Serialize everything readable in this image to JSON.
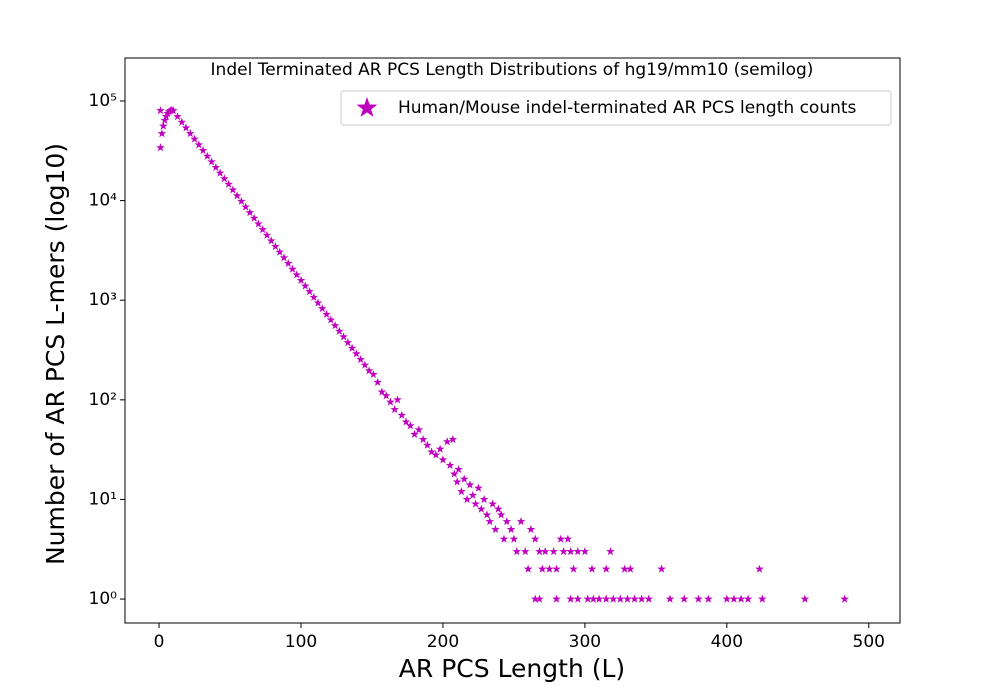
{
  "chart_data": {
    "type": "scatter",
    "title": "Indel Terminated AR PCS Length Distributions of hg19/mm10 (semilog)",
    "x_label": "AR PCS Length (L)",
    "y_label": "Number of AR PCS L-mers (log10)",
    "yscale": "log",
    "legend_loc": "upper right",
    "xlim": [
      -24,
      522
    ],
    "ylim": [
      0.575,
      270000
    ],
    "xticks": [
      0,
      100,
      200,
      300,
      400,
      500
    ],
    "yticks": [
      {
        "value": 1,
        "label": "10⁰"
      },
      {
        "value": 10,
        "label": "10¹"
      },
      {
        "value": 100,
        "label": "10²"
      },
      {
        "value": 1000,
        "label": "10³"
      },
      {
        "value": 10000,
        "label": "10⁴"
      },
      {
        "value": 100000,
        "label": "10⁵"
      }
    ],
    "series": [
      {
        "name": "Human/Mouse indel-terminated AR PCS length counts",
        "color": "#bf00bf",
        "marker": "star",
        "x": [
          1,
          1,
          2,
          3,
          4,
          5,
          6,
          7,
          8,
          9,
          10,
          13,
          16,
          19,
          22,
          25,
          28,
          31,
          34,
          37,
          40,
          43,
          46,
          49,
          52,
          55,
          58,
          61,
          64,
          67,
          70,
          73,
          76,
          79,
          82,
          85,
          88,
          91,
          94,
          97,
          100,
          103,
          106,
          109,
          112,
          115,
          118,
          121,
          124,
          127,
          130,
          133,
          136,
          139,
          142,
          145,
          148,
          151,
          154,
          157,
          160,
          163,
          166,
          168,
          171,
          174,
          177,
          180,
          183,
          186,
          189,
          192,
          195,
          198,
          200,
          203,
          205,
          207,
          208,
          210,
          211,
          213,
          215,
          217,
          219,
          221,
          223,
          225,
          227,
          229,
          231,
          233,
          235,
          237,
          239,
          241,
          243,
          245,
          248,
          250,
          252,
          255,
          258,
          260,
          262,
          265,
          268,
          270,
          272,
          275,
          278,
          280,
          283,
          285,
          288,
          290,
          292,
          295,
          300,
          305,
          315,
          318,
          328,
          332,
          354,
          423,
          265,
          268,
          280,
          290,
          295,
          302,
          306,
          310,
          315,
          320,
          325,
          330,
          335,
          340,
          345,
          360,
          370,
          380,
          387,
          400,
          405,
          410,
          415,
          425,
          455,
          483
        ],
        "values": [
          34000,
          80000,
          47000,
          56000,
          64000,
          70000,
          75000,
          78000,
          80000,
          81000,
          80000,
          69700,
          61200,
          53700,
          47100,
          41400,
          36300,
          31900,
          27900,
          24500,
          21500,
          18900,
          16600,
          14600,
          12800,
          11200,
          9840,
          8630,
          7570,
          6650,
          5830,
          5120,
          4490,
          3940,
          3460,
          3040,
          2670,
          2340,
          2050,
          1800,
          1580,
          1390,
          1220,
          1070,
          938,
          823,
          722,
          634,
          556,
          488,
          429,
          376,
          330,
          290,
          254,
          223,
          196,
          180,
          150,
          120,
          110,
          95,
          80,
          100,
          70,
          60,
          55,
          45,
          50,
          40,
          35,
          30,
          28,
          32,
          25,
          38,
          22,
          40,
          18,
          15,
          20,
          12,
          16,
          10,
          14,
          11,
          9,
          13,
          8,
          10,
          7,
          6,
          9,
          5,
          8,
          7,
          4,
          6,
          5,
          4,
          3,
          6,
          3,
          2,
          5,
          4,
          3,
          2,
          3,
          2,
          3,
          2,
          4,
          3,
          4,
          3,
          2,
          3,
          3,
          2,
          2,
          3,
          2,
          2,
          2,
          2,
          1,
          1,
          1,
          1,
          1,
          1,
          1,
          1,
          1,
          1,
          1,
          1,
          1,
          1,
          1,
          1,
          1,
          1,
          1,
          1,
          1,
          1,
          1,
          1,
          1,
          1
        ]
      }
    ]
  }
}
